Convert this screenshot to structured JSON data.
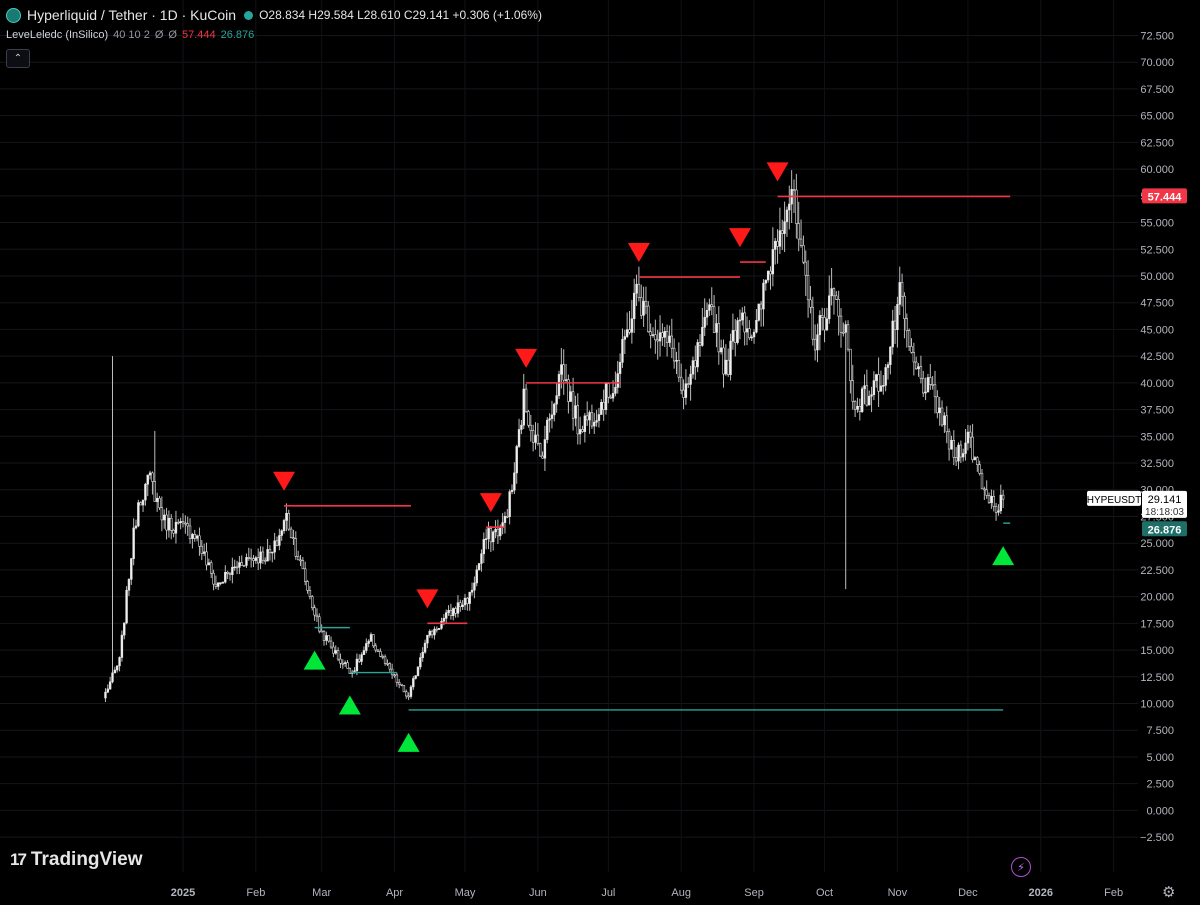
{
  "header": {
    "symbol_title": "Hyperliquid / Tether · 1D · KuCoin",
    "ohlc": "O28.834 H29.584 L28.610 C29.141 +0.306 (+1.06%)",
    "collapse_icon": "chevron-up-icon"
  },
  "indicator": {
    "name": "LeveLeledc (InSilico)",
    "params": "40 10 2",
    "phi1": "Ø",
    "phi2": "Ø",
    "upper_value": "57.444",
    "lower_value": "26.876"
  },
  "branding": {
    "name": "TradingView",
    "icon": "tradingview-logo"
  },
  "icons": {
    "bolt": "bolt-icon",
    "settings": "gear-icon"
  },
  "colors": {
    "background": "#000000",
    "candle": "#e6e6e6",
    "resistance": "#f23645",
    "support": "#26a69a",
    "buy_marker": "#00e639",
    "sell_marker": "#ff1a1a"
  },
  "chart_data": {
    "type": "candlestick",
    "ylim": [
      -3.2,
      73.8
    ],
    "y_ticks": [
      "72.500",
      "70.000",
      "67.500",
      "65.000",
      "62.500",
      "60.000",
      "57.500",
      "55.000",
      "52.500",
      "50.000",
      "47.500",
      "45.000",
      "42.500",
      "40.000",
      "37.500",
      "35.000",
      "32.500",
      "30.000",
      "27.500",
      "25.000",
      "22.500",
      "20.000",
      "17.500",
      "15.000",
      "12.500",
      "10.000",
      "7.500",
      "5.000",
      "2.500",
      "0.000",
      "−2.500"
    ],
    "x_ticks": [
      {
        "label": "2025",
        "bold": true
      },
      {
        "label": "Feb"
      },
      {
        "label": "Mar"
      },
      {
        "label": "Apr"
      },
      {
        "label": "May"
      },
      {
        "label": "Jun"
      },
      {
        "label": "Jul"
      },
      {
        "label": "Aug"
      },
      {
        "label": "Sep"
      },
      {
        "label": "Oct"
      },
      {
        "label": "Nov"
      },
      {
        "label": "Dec"
      },
      {
        "label": "2026",
        "bold": true
      },
      {
        "label": "Feb"
      }
    ],
    "price_labels": {
      "resistance": "57.444",
      "symbol": "HYPEUSDT",
      "last_price": "29.141",
      "countdown": "18:18:03",
      "support": "26.876"
    },
    "anchors": [
      {
        "date": "2024-11-29",
        "price": 11
      },
      {
        "date": "2024-12-05",
        "price": 14
      },
      {
        "date": "2024-12-10",
        "price": 24
      },
      {
        "date": "2024-12-13",
        "price": 29
      },
      {
        "date": "2024-12-18",
        "price": 31
      },
      {
        "date": "2024-12-24",
        "price": 27
      },
      {
        "date": "2025-01-06",
        "price": 26
      },
      {
        "date": "2025-01-15",
        "price": 21
      },
      {
        "date": "2025-01-27",
        "price": 23.5
      },
      {
        "date": "2025-02-08",
        "price": 24
      },
      {
        "date": "2025-02-14",
        "price": 27.5
      },
      {
        "date": "2025-02-20",
        "price": 23
      },
      {
        "date": "2025-02-28",
        "price": 17
      },
      {
        "date": "2025-03-09",
        "price": 14
      },
      {
        "date": "2025-03-14",
        "price": 13
      },
      {
        "date": "2025-03-22",
        "price": 16
      },
      {
        "date": "2025-03-30",
        "price": 13
      },
      {
        "date": "2025-04-07",
        "price": 10.5
      },
      {
        "date": "2025-04-14",
        "price": 16
      },
      {
        "date": "2025-04-25",
        "price": 18.5
      },
      {
        "date": "2025-05-03",
        "price": 20
      },
      {
        "date": "2025-05-10",
        "price": 25.5
      },
      {
        "date": "2025-05-17",
        "price": 26.5
      },
      {
        "date": "2025-05-21",
        "price": 30
      },
      {
        "date": "2025-05-26",
        "price": 38.5
      },
      {
        "date": "2025-06-02",
        "price": 33
      },
      {
        "date": "2025-06-11",
        "price": 41.5
      },
      {
        "date": "2025-06-18",
        "price": 36
      },
      {
        "date": "2025-06-24",
        "price": 37
      },
      {
        "date": "2025-07-04",
        "price": 40
      },
      {
        "date": "2025-07-13",
        "price": 48.5
      },
      {
        "date": "2025-07-20",
        "price": 45
      },
      {
        "date": "2025-07-29",
        "price": 43
      },
      {
        "date": "2025-08-02",
        "price": 38
      },
      {
        "date": "2025-08-09",
        "price": 43.5
      },
      {
        "date": "2025-08-14",
        "price": 47
      },
      {
        "date": "2025-08-20",
        "price": 41
      },
      {
        "date": "2025-08-26",
        "price": 47
      },
      {
        "date": "2025-09-01",
        "price": 44
      },
      {
        "date": "2025-09-06",
        "price": 49.5
      },
      {
        "date": "2025-09-12",
        "price": 55
      },
      {
        "date": "2025-09-17",
        "price": 58
      },
      {
        "date": "2025-09-22",
        "price": 50
      },
      {
        "date": "2025-09-27",
        "price": 44
      },
      {
        "date": "2025-10-04",
        "price": 48
      },
      {
        "date": "2025-10-10",
        "price": 45
      },
      {
        "date": "2025-10-13",
        "price": 38
      },
      {
        "date": "2025-10-20",
        "price": 39
      },
      {
        "date": "2025-10-27",
        "price": 41
      },
      {
        "date": "2025-11-02",
        "price": 48
      },
      {
        "date": "2025-11-07",
        "price": 42
      },
      {
        "date": "2025-11-12",
        "price": 40
      },
      {
        "date": "2025-11-18",
        "price": 38
      },
      {
        "date": "2025-11-25",
        "price": 33
      },
      {
        "date": "2025-12-01",
        "price": 35
      },
      {
        "date": "2025-12-08",
        "price": 30
      },
      {
        "date": "2025-12-13",
        "price": 28.5
      },
      {
        "date": "2025-12-16",
        "price": 29.1
      }
    ],
    "spikes": [
      {
        "date": "2024-12-02",
        "high": 42.5
      },
      {
        "date": "2024-12-20",
        "high": 35.5
      },
      {
        "date": "2025-10-10",
        "low": 20.7
      }
    ],
    "resistance_lines": [
      {
        "from": "2025-02-13",
        "to": "2025-04-08",
        "price": 28.5
      },
      {
        "from": "2025-04-15",
        "to": "2025-05-02",
        "price": 17.5
      },
      {
        "from": "2025-05-10",
        "to": "2025-05-18",
        "price": 26.5
      },
      {
        "from": "2025-05-27",
        "to": "2025-07-06",
        "price": 40.0
      },
      {
        "from": "2025-07-14",
        "to": "2025-08-26",
        "price": 49.9
      },
      {
        "from": "2025-08-26",
        "to": "2025-09-06",
        "price": 51.3
      },
      {
        "from": "2025-09-11",
        "to": "2025-12-19",
        "price": 57.444
      }
    ],
    "support_lines": [
      {
        "from": "2025-02-26",
        "to": "2025-03-13",
        "price": 17.1
      },
      {
        "from": "2025-03-13",
        "to": "2025-04-02",
        "price": 12.9
      },
      {
        "from": "2025-04-07",
        "to": "2025-12-16",
        "price": 9.4
      },
      {
        "from": "2025-12-16",
        "to": "2025-12-19",
        "price": 26.876
      }
    ],
    "sell_signals": [
      {
        "date": "2025-02-13",
        "price": 28.5
      },
      {
        "date": "2025-04-15",
        "price": 17.5
      },
      {
        "date": "2025-05-12",
        "price": 26.5
      },
      {
        "date": "2025-05-27",
        "price": 40.0
      },
      {
        "date": "2025-07-14",
        "price": 49.9
      },
      {
        "date": "2025-08-26",
        "price": 51.3
      },
      {
        "date": "2025-09-11",
        "price": 57.444
      }
    ],
    "buy_signals": [
      {
        "date": "2025-02-26",
        "price": 17.1
      },
      {
        "date": "2025-03-13",
        "price": 12.9
      },
      {
        "date": "2025-04-07",
        "price": 9.4
      },
      {
        "date": "2025-12-16",
        "price": 26.876
      }
    ]
  }
}
